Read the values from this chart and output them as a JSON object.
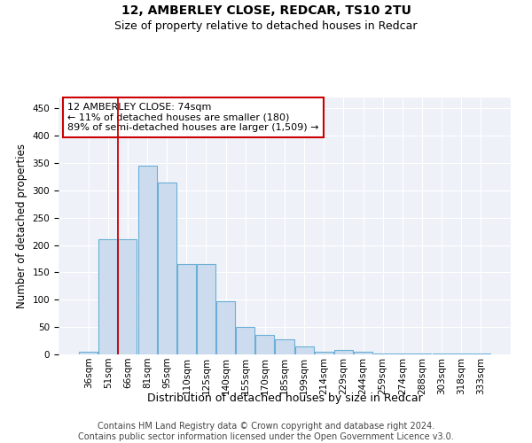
{
  "title": "12, AMBERLEY CLOSE, REDCAR, TS10 2TU",
  "subtitle": "Size of property relative to detached houses in Redcar",
  "xlabel": "Distribution of detached houses by size in Redcar",
  "ylabel": "Number of detached properties",
  "categories": [
    "36sqm",
    "51sqm",
    "66sqm",
    "81sqm",
    "95sqm",
    "110sqm",
    "125sqm",
    "140sqm",
    "155sqm",
    "170sqm",
    "185sqm",
    "199sqm",
    "214sqm",
    "229sqm",
    "244sqm",
    "259sqm",
    "274sqm",
    "288sqm",
    "303sqm",
    "318sqm",
    "333sqm"
  ],
  "values": [
    5,
    210,
    210,
    345,
    315,
    165,
    165,
    98,
    50,
    35,
    28,
    15,
    5,
    8,
    5,
    2,
    2,
    2,
    2,
    2,
    2
  ],
  "bar_color": "#ccdcee",
  "bar_edge_color": "#6baed6",
  "vline_color": "#cc0000",
  "annotation_text": "12 AMBERLEY CLOSE: 74sqm\n← 11% of detached houses are smaller (180)\n89% of semi-detached houses are larger (1,509) →",
  "annotation_box_color": "#cc0000",
  "ylim": [
    0,
    470
  ],
  "yticks": [
    0,
    50,
    100,
    150,
    200,
    250,
    300,
    350,
    400,
    450
  ],
  "footer": "Contains HM Land Registry data © Crown copyright and database right 2024.\nContains public sector information licensed under the Open Government Licence v3.0.",
  "title_fontsize": 10,
  "subtitle_fontsize": 9,
  "xlabel_fontsize": 9,
  "ylabel_fontsize": 8.5,
  "tick_fontsize": 7.5,
  "footer_fontsize": 7,
  "bg_color": "#eef2f8"
}
